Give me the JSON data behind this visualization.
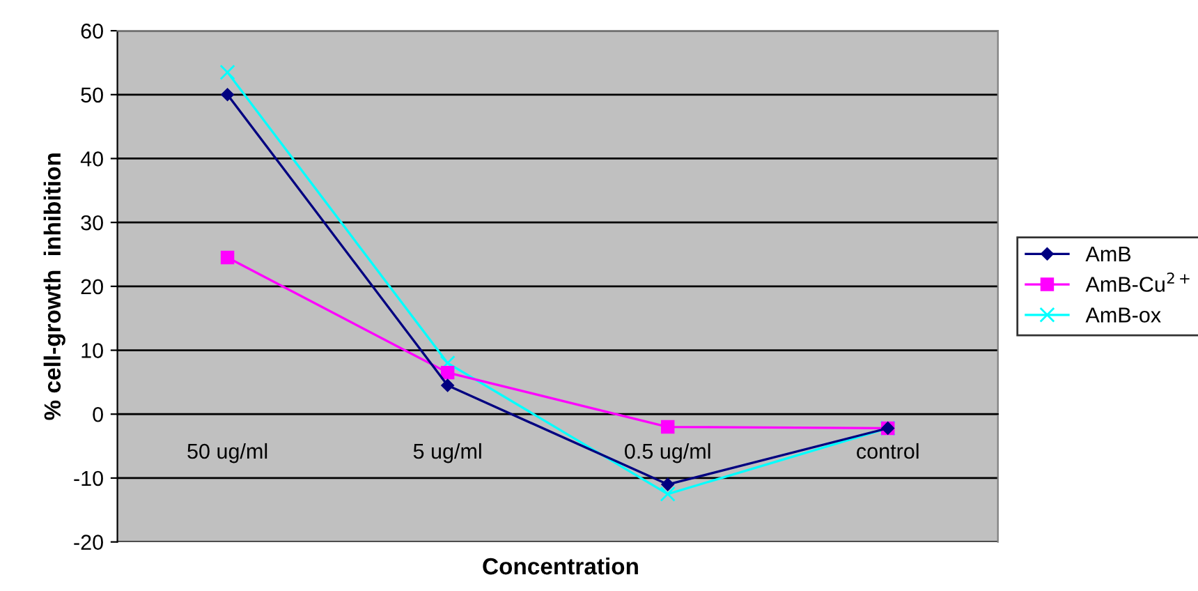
{
  "chart_data": {
    "type": "line",
    "xlabel": "Concentration",
    "ylabel": "% cell-growth  inhibition",
    "categories": [
      "50 ug/ml",
      "5 ug/ml",
      "0.5 ug/ml",
      "control"
    ],
    "series": [
      {
        "name": "AmB",
        "color": "#000080",
        "marker": "diamond",
        "values": [
          50,
          4.5,
          -11,
          -2.2
        ]
      },
      {
        "name": "AmB-Cu$^{2+}$",
        "color": "#ff00ff",
        "marker": "square",
        "values": [
          24.5,
          6.5,
          -2,
          -2.2
        ]
      },
      {
        "name": "AmB-ox",
        "color": "#00ffff",
        "marker": "cross",
        "values": [
          53.5,
          8,
          -12.5,
          -2.2
        ]
      }
    ],
    "ylim": [
      -20,
      60
    ],
    "yticks": [
      -20,
      -10,
      0,
      10,
      20,
      30,
      40,
      50,
      60
    ],
    "grid": "y",
    "legend": "right"
  }
}
